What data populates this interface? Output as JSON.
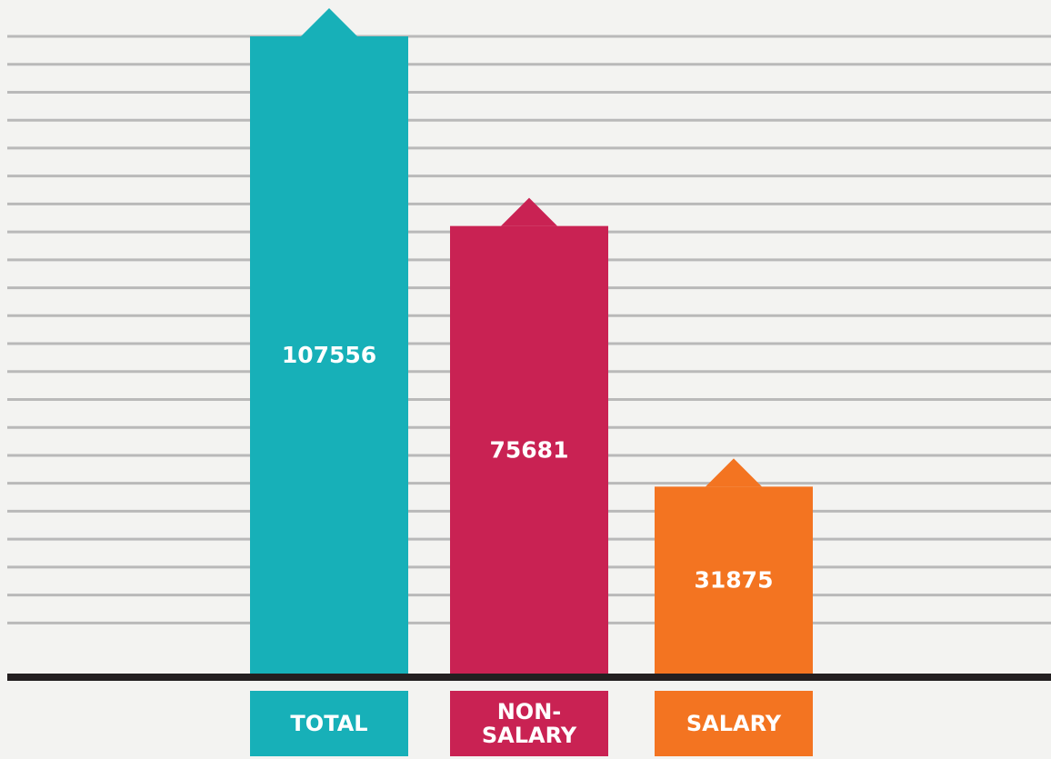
{
  "chart_data": {
    "type": "bar",
    "categories": [
      "TOTAL",
      "NON-SALARY",
      "SALARY"
    ],
    "values": [
      107556,
      75681,
      31875
    ],
    "colors": [
      "#17b0b8",
      "#c92253",
      "#f37421"
    ]
  }
}
